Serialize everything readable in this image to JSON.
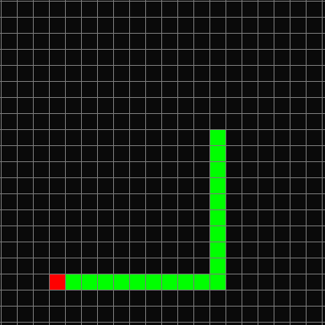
{
  "game": {
    "grid": {
      "cols": 20,
      "rows": 20
    },
    "colors": {
      "background": "#0a0a0a",
      "grid_line": "#7a7a7a",
      "snake": "#00ff00",
      "food": "#ff0000"
    },
    "food": {
      "col": 3,
      "row": 17
    },
    "snake": [
      {
        "col": 13,
        "row": 8
      },
      {
        "col": 13,
        "row": 9
      },
      {
        "col": 13,
        "row": 10
      },
      {
        "col": 13,
        "row": 11
      },
      {
        "col": 13,
        "row": 12
      },
      {
        "col": 13,
        "row": 13
      },
      {
        "col": 13,
        "row": 14
      },
      {
        "col": 13,
        "row": 15
      },
      {
        "col": 13,
        "row": 16
      },
      {
        "col": 13,
        "row": 17
      },
      {
        "col": 12,
        "row": 17
      },
      {
        "col": 11,
        "row": 17
      },
      {
        "col": 10,
        "row": 17
      },
      {
        "col": 9,
        "row": 17
      },
      {
        "col": 8,
        "row": 17
      },
      {
        "col": 7,
        "row": 17
      },
      {
        "col": 6,
        "row": 17
      },
      {
        "col": 5,
        "row": 17
      },
      {
        "col": 4,
        "row": 17
      }
    ]
  }
}
